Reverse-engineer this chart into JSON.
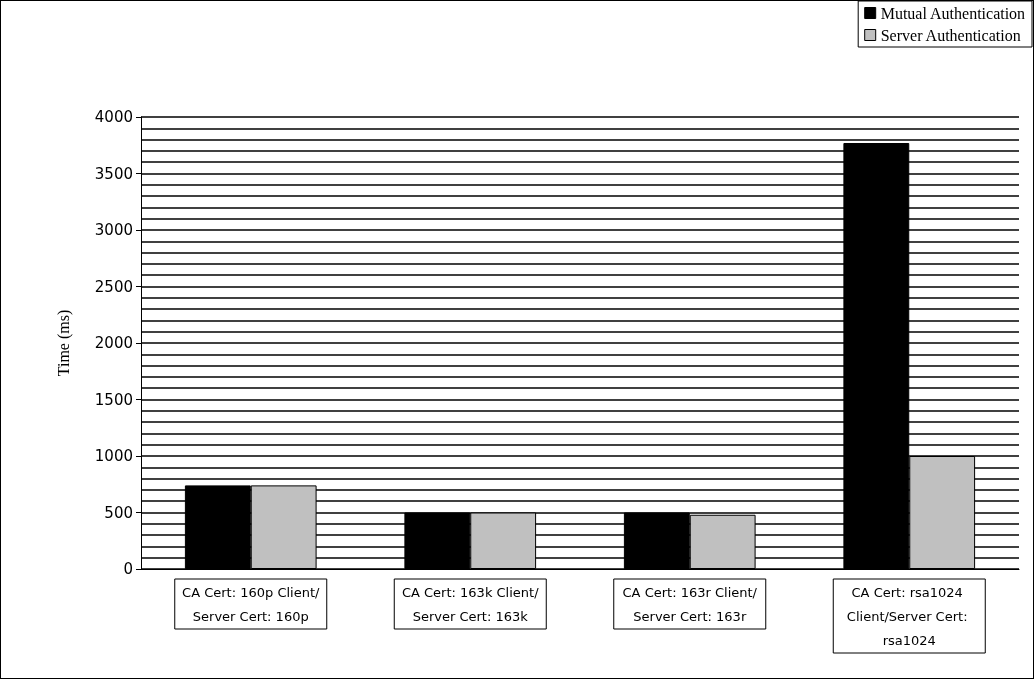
{
  "chart_data": {
    "type": "bar",
    "ylabel": "Time (ms)",
    "categories": [
      "CA Cert: 160p Client/Server Cert: 160p",
      "CA Cert: 163k Client/Server Cert: 163k",
      "CA Cert: 163r Client/Server Cert: 163r",
      "CA Cert: rsa1024 Client/Server Cert: rsa1024"
    ],
    "series": [
      {
        "name": "Mutual Authentication",
        "color": "#000000",
        "values": [
          740,
          500,
          500,
          3770
        ]
      },
      {
        "name": "Server Authentication",
        "color": "#c0c0c0",
        "values": [
          740,
          500,
          480,
          1000
        ]
      }
    ],
    "ylim": [
      0,
      4000
    ],
    "yticks": [
      0,
      500,
      1000,
      1500,
      2000,
      2500,
      3000,
      3500,
      4000
    ],
    "grid": "y",
    "legend": "top right"
  }
}
